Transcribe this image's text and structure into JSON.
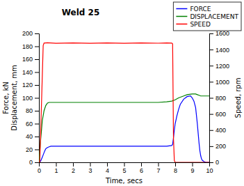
{
  "chart_data": {
    "type": "line",
    "title": "Weld 25",
    "xlabel": "Time, secs",
    "ylabel": "Force, kN\nDisplacement, mm",
    "y2label": "Speed, rpm",
    "xlim": [
      0,
      10
    ],
    "ylim": [
      0,
      200
    ],
    "y2lim": [
      0,
      1600
    ],
    "xticks": [
      0,
      1,
      2,
      3,
      4,
      5,
      6,
      7,
      8,
      9,
      10
    ],
    "yticks": [
      0,
      20,
      40,
      60,
      80,
      100,
      120,
      140,
      160,
      180,
      200
    ],
    "y2ticks": [
      0,
      200,
      400,
      600,
      800,
      1000,
      1200,
      1400,
      1600
    ],
    "grid": false,
    "legend": "upper right",
    "series": [
      {
        "name": "FORCE",
        "color": "blue",
        "axis": "y",
        "x": [
          0,
          0.05,
          0.1,
          0.2,
          0.3,
          0.35,
          0.4,
          0.5,
          0.6,
          0.7,
          0.8,
          1.0,
          2.0,
          3.0,
          4.0,
          5.0,
          6.0,
          7.0,
          7.5,
          7.8,
          7.85,
          7.9,
          7.95,
          8.0,
          8.1,
          8.2,
          8.3,
          8.5,
          8.7,
          8.9,
          9.0,
          9.1,
          9.2,
          9.3,
          9.35,
          9.4,
          9.45,
          9.5,
          9.55,
          9.6,
          9.7,
          9.8,
          10.0
        ],
        "values": [
          0,
          0,
          2,
          8,
          15,
          18,
          21,
          23,
          24,
          25,
          25,
          25,
          25,
          25,
          25,
          25,
          25,
          25,
          25,
          26,
          28,
          38,
          50,
          60,
          72,
          82,
          90,
          98,
          102,
          103,
          100,
          95,
          85,
          60,
          45,
          30,
          18,
          10,
          5,
          3,
          1,
          0,
          0
        ]
      },
      {
        "name": "DISPLACEMENT",
        "color": "green",
        "axis": "y",
        "x": [
          0,
          0.1,
          0.2,
          0.3,
          0.4,
          0.5,
          0.6,
          0.7,
          0.8,
          1.0,
          2.0,
          3.0,
          4.0,
          5.0,
          6.0,
          7.0,
          7.5,
          7.8,
          8.0,
          8.2,
          8.5,
          8.7,
          9.0,
          9.2,
          9.3,
          9.4,
          9.5,
          10.0
        ],
        "values": [
          0,
          35,
          65,
          80,
          88,
          92,
          93,
          93,
          93,
          93,
          93,
          93,
          93,
          93,
          93,
          93,
          94,
          95,
          97,
          100,
          103,
          105,
          106,
          106,
          105,
          104,
          103,
          103
        ]
      },
      {
        "name": "SPEED",
        "color": "red",
        "axis": "y2",
        "x": [
          0,
          0.05,
          0.25,
          0.3,
          0.5,
          1.0,
          2.0,
          3.0,
          4.0,
          5.0,
          6.0,
          7.0,
          7.5,
          7.8,
          7.85,
          7.9,
          7.95,
          8.0,
          10.0
        ],
        "values": [
          0,
          0,
          1450,
          1480,
          1485,
          1478,
          1483,
          1478,
          1482,
          1478,
          1483,
          1479,
          1482,
          1480,
          1470,
          300,
          20,
          0,
          0
        ]
      }
    ]
  }
}
